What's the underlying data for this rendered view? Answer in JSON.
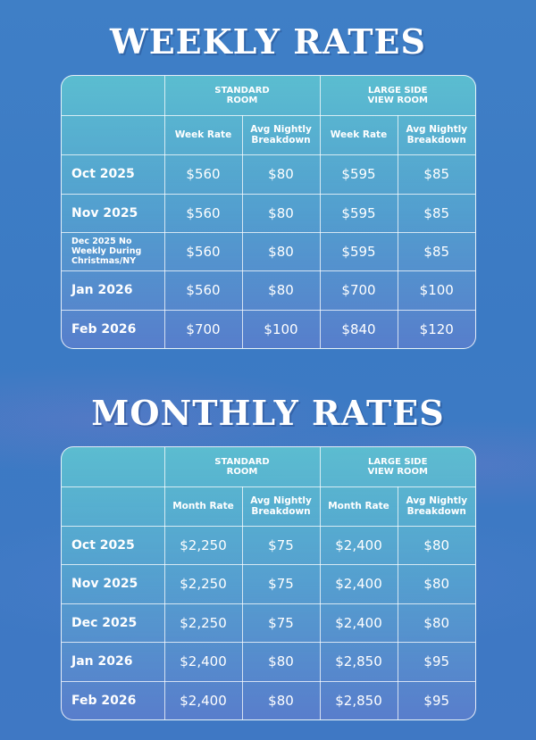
{
  "weekly": {
    "title": "WEEKLY RATES",
    "group_headers": [
      "STANDARD\nROOM",
      "LARGE SIDE\nVIEW ROOM"
    ],
    "sub_headers": [
      "Week Rate",
      "Avg Nightly\nBreakdown",
      "Week Rate",
      "Avg Nightly\nBreakdown"
    ],
    "rows": [
      {
        "label": "Oct 2025",
        "values": [
          "$560",
          "$80",
          "$595",
          "$85"
        ]
      },
      {
        "label": "Nov 2025",
        "values": [
          "$560",
          "$80",
          "$595",
          "$85"
        ]
      },
      {
        "label": "Dec 2025 No\nWeekly During\nChristmas/NY",
        "values": [
          "$560",
          "$80",
          "$595",
          "$85"
        ]
      },
      {
        "label": "Jan 2026",
        "values": [
          "$560",
          "$80",
          "$700",
          "$100"
        ]
      },
      {
        "label": "Feb 2026",
        "values": [
          "$700",
          "$100",
          "$840",
          "$120"
        ]
      }
    ]
  },
  "monthly": {
    "title": "MONTHLY RATES",
    "group_headers": [
      "STANDARD\nROOM",
      "LARGE SIDE\nVIEW ROOM"
    ],
    "sub_headers": [
      "Month Rate",
      "Avg Nightly\nBreakdown",
      "Month Rate",
      "Avg Nightly\nBreakdown"
    ],
    "rows": [
      {
        "label": "Oct 2025",
        "values": [
          "$2,250",
          "$75",
          "$2,400",
          "$80"
        ]
      },
      {
        "label": "Nov 2025",
        "values": [
          "$2,250",
          "$75",
          "$2,400",
          "$80"
        ]
      },
      {
        "label": "Dec 2025",
        "values": [
          "$2,250",
          "$75",
          "$2,400",
          "$80"
        ]
      },
      {
        "label": "Jan 2026",
        "values": [
          "$2,400",
          "$80",
          "$2,850",
          "$95"
        ]
      },
      {
        "label": "Feb 2026",
        "values": [
          "$2,400",
          "$80",
          "$2,850",
          "$95"
        ]
      }
    ]
  }
}
